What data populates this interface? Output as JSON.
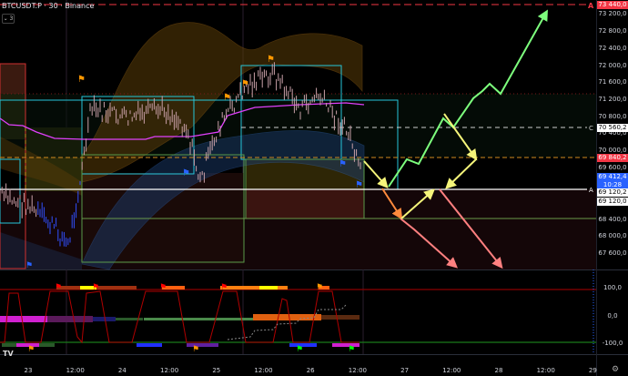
{
  "header": {
    "symbol_title": "BTCUSDT.P · 30 · Binance",
    "collapse_label": "⌄ 3"
  },
  "price_axis": {
    "ticks": [
      "73 200,0",
      "72 800,0",
      "72 400,0",
      "72 000,0",
      "71 600,0",
      "71 200,0",
      "70 800,0",
      "70 400,0",
      "70 000,0",
      "69 600,0",
      "68 400,0",
      "68 000,0",
      "67 600,0"
    ],
    "tags": [
      {
        "text": "73 440,0",
        "bg": "#f23645",
        "fg": "#ffffff"
      },
      {
        "text": "70 560,2",
        "bg": "#ffffff",
        "fg": "#000000"
      },
      {
        "text": "69 840,2",
        "bg": "#f23645",
        "fg": "#ffffff"
      },
      {
        "text": "69 412,4",
        "bg": "#2962ff",
        "fg": "#ffffff"
      },
      {
        "text": "10:28",
        "bg": "#2962ff",
        "fg": "#ffffff"
      },
      {
        "text": "69 120,2",
        "bg": "#ffffff",
        "fg": "#000000"
      },
      {
        "text": "69 120,0",
        "bg": "#ffffff",
        "fg": "#000000"
      }
    ],
    "markers": {
      "a_top": "A",
      "c_line": "C",
      "a_line": "A"
    }
  },
  "oscillator_axis": {
    "ticks": [
      "100,0",
      "0,0",
      "-100,0"
    ]
  },
  "time_axis": {
    "ticks": [
      "23",
      "12:00",
      "24",
      "12:00",
      "25",
      "12:00",
      "26",
      "12:00",
      "27",
      "12:00",
      "28",
      "12:00",
      "29"
    ]
  },
  "logo": "TV",
  "icons": {
    "settings": "gear-icon"
  },
  "colors": {
    "up": "#4caf50",
    "down": "#f23645",
    "last_price": "#2962ff",
    "bands": "#a0701a",
    "pivot": "#e040fb",
    "cyan_box": "#26c6da"
  }
}
